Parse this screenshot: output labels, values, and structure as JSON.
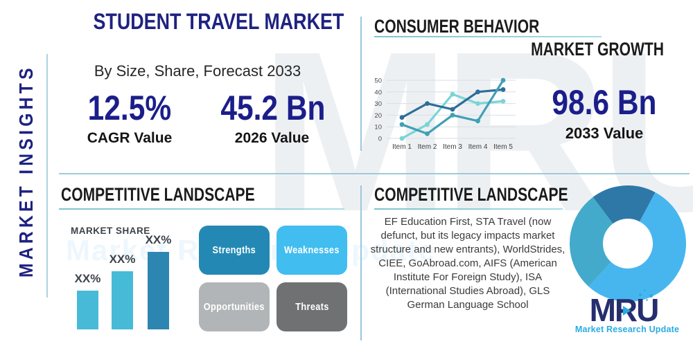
{
  "sidebar": {
    "label": "MARKET INSIGHTS"
  },
  "header": {
    "title": "STUDENT TRAVEL MARKET",
    "subtitle": "By Size, Share, Forecast 2033"
  },
  "stats": {
    "cagr": {
      "value": "12.5%",
      "label": "CAGR Value"
    },
    "y2026": {
      "value": "45.2 Bn",
      "label": "2026 Value"
    },
    "y2033": {
      "value": "98.6 Bn",
      "label": "2033 Value"
    }
  },
  "sections": {
    "consumer_behavior": {
      "title": "CONSUMER BEHAVIOR"
    },
    "market_growth": {
      "title": "MARKET GROWTH"
    },
    "competitive_left": {
      "title": "COMPETITIVE LANDSCAPE"
    },
    "competitive_right": {
      "title": "COMPETITIVE LANDSCAPE",
      "body": "EF Education First, STA Travel (now defunct, but its legacy impacts market structure and new entrants), WorldStrides, CIEE, GoAbroad.com, AIFS (American Institute For Foreign Study), ISA (International Studies Abroad), GLS German Language School"
    }
  },
  "swot": [
    {
      "label": "Strengths",
      "color": "#2389b4"
    },
    {
      "label": "Weaknesses",
      "color": "#41bdf0"
    },
    {
      "label": "Opportunities",
      "color": "#b2b5b7"
    },
    {
      "label": "Threats",
      "color": "#6f7173"
    }
  ],
  "chart_data": [
    {
      "type": "line",
      "name": "consumer-behavior-line-chart",
      "x": [
        "Item 1",
        "Item 2",
        "Item 3",
        "Item 4",
        "Item 5"
      ],
      "series": [
        {
          "name": "series-dark-blue",
          "color": "#2e6d99",
          "values": [
            18,
            30,
            25,
            40,
            42
          ]
        },
        {
          "name": "series-teal",
          "color": "#3fa0b5",
          "values": [
            12,
            4,
            20,
            15,
            50
          ]
        },
        {
          "name": "series-light-cyan",
          "color": "#79d5d5",
          "values": [
            0,
            12,
            38,
            30,
            32
          ]
        }
      ],
      "ylim": [
        0,
        50
      ],
      "yticks": [
        0,
        10,
        20,
        30,
        40,
        50
      ],
      "grid": true,
      "legend": "none"
    },
    {
      "type": "bar",
      "name": "market-share-bar-chart",
      "title": "MARKET SHARE",
      "categories": [
        "bar-1",
        "bar-2",
        "bar-3"
      ],
      "values": [
        40,
        60,
        80
      ],
      "value_labels": [
        "XX%",
        "XX%",
        "XX%"
      ],
      "bar_colors": [
        "#47bad8",
        "#47bad8",
        "#2d86b2"
      ],
      "ylim": [
        0,
        100
      ]
    },
    {
      "type": "pie",
      "name": "market-share-donut",
      "donut": true,
      "start_angle_deg": 28,
      "slices": [
        {
          "name": "slice-light-blue",
          "value": 54,
          "color": "#47b6ef"
        },
        {
          "name": "slice-teal",
          "value": 28,
          "color": "#44aacb"
        },
        {
          "name": "slice-dark-blue",
          "value": 18,
          "color": "#2e78a8"
        }
      ]
    }
  ],
  "logo": {
    "name": "MRU",
    "tagline": "Market Research Update"
  },
  "watermark": {
    "text": "MRU",
    "subtext": "Market Research Update"
  },
  "colors": {
    "navy": "#1e2280",
    "number_navy": "#1b1e8a",
    "header_black": "#1b1b1b",
    "underline_teal": "#9ccfd8",
    "divider_blue": "#9cc6da",
    "logo_navy": "#252e6e",
    "logo_blue": "#29abe2"
  }
}
